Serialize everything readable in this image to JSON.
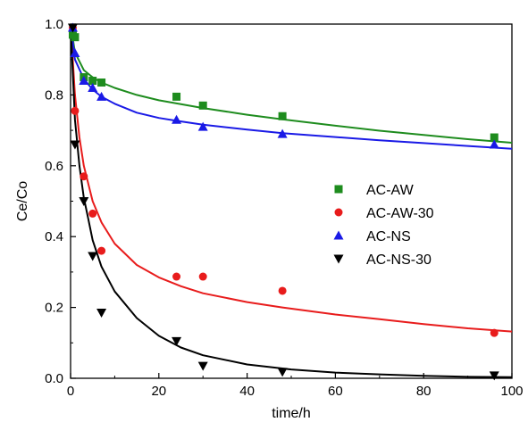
{
  "chart_data": {
    "type": "scatter",
    "title": "",
    "xlabel": "time/h",
    "ylabel": "Ce/Co",
    "xlim": [
      0,
      100
    ],
    "ylim": [
      0.0,
      1.0
    ],
    "xticks": [
      0,
      20,
      40,
      60,
      80,
      100
    ],
    "yticks": [
      0.0,
      0.2,
      0.4,
      0.6,
      0.8,
      1.0
    ],
    "x_tick_labels": [
      "0",
      "20",
      "40",
      "60",
      "80",
      "100"
    ],
    "y_tick_labels": [
      "0.0",
      "0.2",
      "0.4",
      "0.6",
      "0.8",
      "1.0"
    ],
    "grid": false,
    "legend_position": "right-middle",
    "series": [
      {
        "name": "AC-AW",
        "color": "#1e8c1e",
        "marker": "square",
        "points": [
          [
            0.5,
            0.97
          ],
          [
            1,
            0.963
          ],
          [
            3,
            0.85
          ],
          [
            5,
            0.84
          ],
          [
            7,
            0.835
          ],
          [
            24,
            0.795
          ],
          [
            30,
            0.77
          ],
          [
            48,
            0.74
          ],
          [
            96,
            0.68
          ]
        ],
        "fit": [
          [
            0,
            1.0
          ],
          [
            1,
            0.92
          ],
          [
            3,
            0.87
          ],
          [
            5,
            0.85
          ],
          [
            7,
            0.835
          ],
          [
            10,
            0.82
          ],
          [
            15,
            0.8
          ],
          [
            20,
            0.785
          ],
          [
            24,
            0.776
          ],
          [
            30,
            0.763
          ],
          [
            40,
            0.744
          ],
          [
            48,
            0.731
          ],
          [
            60,
            0.713
          ],
          [
            70,
            0.699
          ],
          [
            80,
            0.687
          ],
          [
            90,
            0.675
          ],
          [
            100,
            0.665
          ]
        ]
      },
      {
        "name": "AC-AW-30",
        "color": "#e81c1c",
        "marker": "circle",
        "points": [
          [
            0.5,
            0.99
          ],
          [
            1,
            0.755
          ],
          [
            3,
            0.57
          ],
          [
            5,
            0.465
          ],
          [
            7,
            0.36
          ],
          [
            24,
            0.287
          ],
          [
            30,
            0.287
          ],
          [
            48,
            0.247
          ],
          [
            96,
            0.128
          ]
        ],
        "fit": [
          [
            0,
            1.0
          ],
          [
            1,
            0.8
          ],
          [
            2,
            0.68
          ],
          [
            3,
            0.6
          ],
          [
            5,
            0.5
          ],
          [
            7,
            0.44
          ],
          [
            10,
            0.38
          ],
          [
            15,
            0.32
          ],
          [
            20,
            0.285
          ],
          [
            25,
            0.26
          ],
          [
            30,
            0.24
          ],
          [
            40,
            0.215
          ],
          [
            48,
            0.2
          ],
          [
            60,
            0.18
          ],
          [
            70,
            0.167
          ],
          [
            80,
            0.153
          ],
          [
            90,
            0.141
          ],
          [
            100,
            0.132
          ]
        ]
      },
      {
        "name": "AC-NS",
        "color": "#1a1ae6",
        "marker": "triangle-up",
        "points": [
          [
            0.5,
            0.99
          ],
          [
            1,
            0.918
          ],
          [
            3,
            0.84
          ],
          [
            5,
            0.82
          ],
          [
            7,
            0.795
          ],
          [
            24,
            0.73
          ],
          [
            30,
            0.71
          ],
          [
            48,
            0.69
          ],
          [
            96,
            0.66
          ]
        ],
        "fit": [
          [
            0,
            1.0
          ],
          [
            1,
            0.9
          ],
          [
            3,
            0.845
          ],
          [
            5,
            0.815
          ],
          [
            7,
            0.795
          ],
          [
            10,
            0.775
          ],
          [
            15,
            0.75
          ],
          [
            20,
            0.735
          ],
          [
            24,
            0.727
          ],
          [
            30,
            0.716
          ],
          [
            40,
            0.702
          ],
          [
            48,
            0.692
          ],
          [
            60,
            0.681
          ],
          [
            70,
            0.672
          ],
          [
            80,
            0.664
          ],
          [
            90,
            0.656
          ],
          [
            100,
            0.648
          ]
        ]
      },
      {
        "name": "AC-NS-30",
        "color": "#000000",
        "marker": "triangle-down",
        "points": [
          [
            0.5,
            0.99
          ],
          [
            1,
            0.66
          ],
          [
            3,
            0.5
          ],
          [
            5,
            0.345
          ],
          [
            7,
            0.185
          ],
          [
            24,
            0.105
          ],
          [
            30,
            0.035
          ],
          [
            48,
            0.018
          ],
          [
            96,
            0.008
          ]
        ],
        "fit": [
          [
            0,
            1.0
          ],
          [
            1,
            0.73
          ],
          [
            2,
            0.6
          ],
          [
            3,
            0.51
          ],
          [
            4,
            0.45
          ],
          [
            5,
            0.39
          ],
          [
            7,
            0.315
          ],
          [
            10,
            0.245
          ],
          [
            15,
            0.17
          ],
          [
            20,
            0.12
          ],
          [
            25,
            0.087
          ],
          [
            30,
            0.065
          ],
          [
            40,
            0.039
          ],
          [
            50,
            0.025
          ],
          [
            60,
            0.016
          ],
          [
            70,
            0.011
          ],
          [
            80,
            0.007
          ],
          [
            90,
            0.004
          ],
          [
            100,
            0.003
          ]
        ]
      }
    ]
  }
}
